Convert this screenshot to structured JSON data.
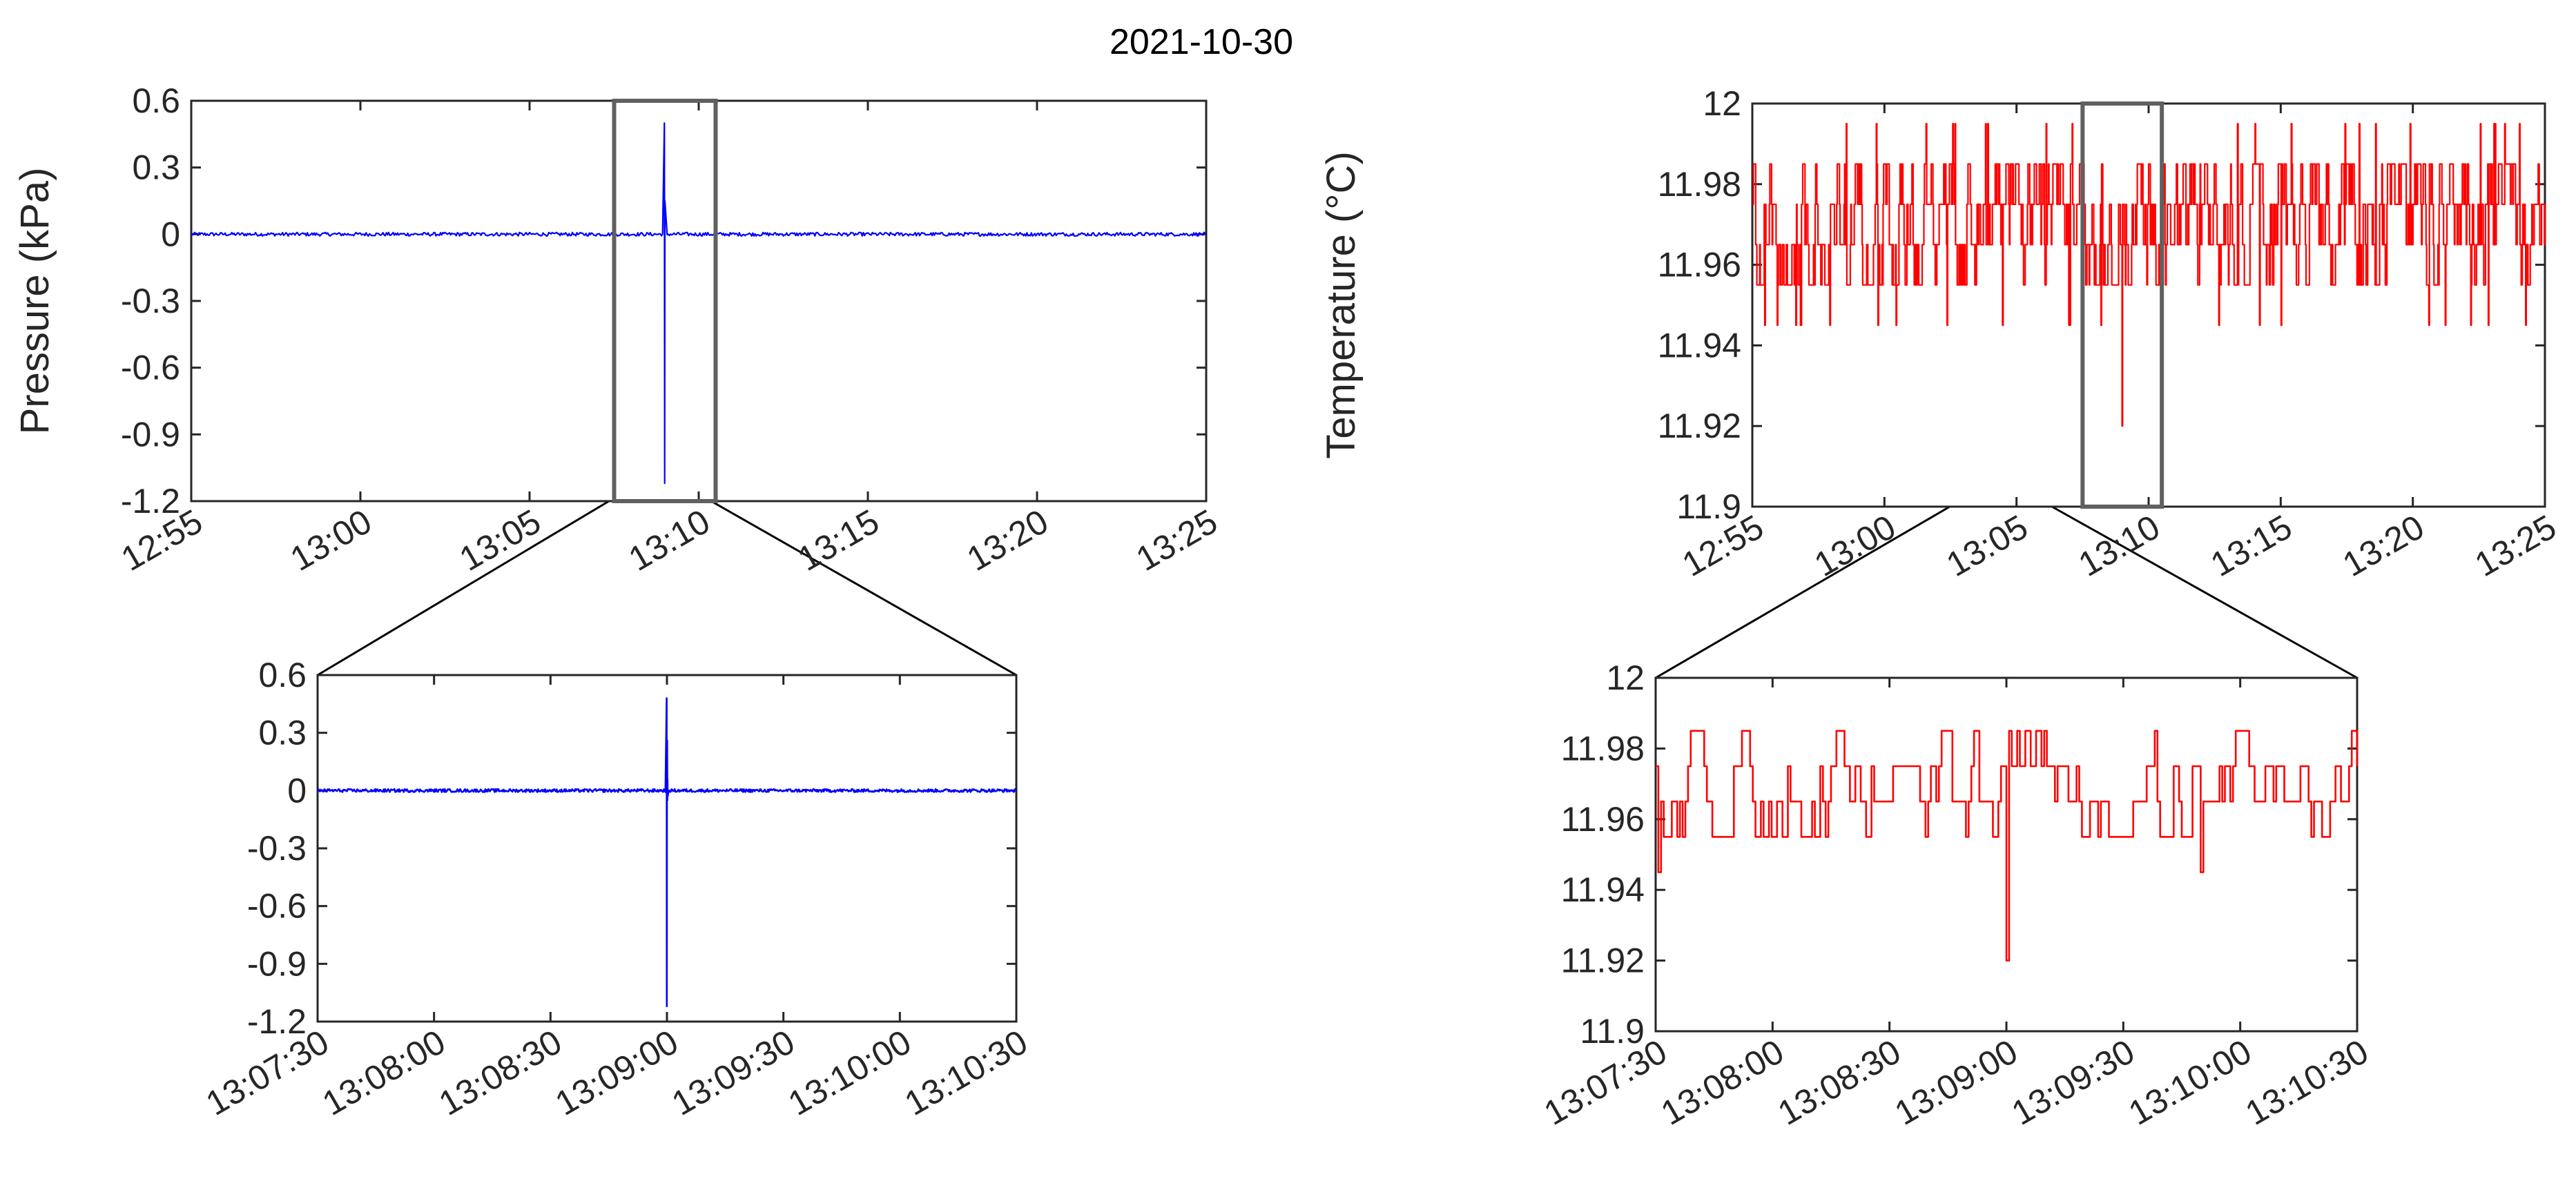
{
  "title": "2021-10-30",
  "colors": {
    "pressure": "#0000ff",
    "temperature": "#ff0000",
    "axis": "#262626",
    "zoom_box": "#606060"
  },
  "chart_data": [
    {
      "id": "pressure-overview",
      "type": "line",
      "ylabel": "Pressure (kPa)",
      "xlabel": "",
      "xlim": [
        "12:55",
        "13:25"
      ],
      "ylim": [
        -1.2,
        0.6
      ],
      "xticks": [
        "12:55",
        "13:00",
        "13:05",
        "13:10",
        "13:15",
        "13:20",
        "13:25"
      ],
      "yticks": [
        "0.6",
        "0.3",
        "0",
        "-0.3",
        "-0.6",
        "-0.9",
        "-1.2"
      ],
      "series": [
        {
          "baseline": 0,
          "noise": 0.008,
          "spike": {
            "time": "13:09:00",
            "max": 0.5,
            "min": -1.12
          }
        }
      ],
      "zoom_window": [
        "13:07:30",
        "13:10:30"
      ]
    },
    {
      "id": "temperature-overview",
      "type": "line",
      "ylabel": "Temperature (°C)",
      "xlabel": "",
      "xlim": [
        "12:55",
        "13:25"
      ],
      "ylim": [
        11.9,
        12
      ],
      "xticks": [
        "12:55",
        "13:00",
        "13:05",
        "13:10",
        "13:15",
        "13:20",
        "13:25"
      ],
      "yticks": [
        "12",
        "11.98",
        "11.96",
        "11.94",
        "11.92",
        "11.9"
      ],
      "series": [
        {
          "levels": [
            11.955,
            11.965,
            11.975,
            11.985
          ],
          "outliers_low": [
            11.945,
            11.92
          ],
          "outliers_high": [
            11.995
          ]
        }
      ],
      "zoom_window": [
        "13:07:30",
        "13:10:30"
      ]
    },
    {
      "id": "pressure-zoom",
      "type": "line",
      "ylabel": "",
      "xlabel": "",
      "xlim": [
        "13:07:30",
        "13:10:30"
      ],
      "ylim": [
        -1.2,
        0.6
      ],
      "xticks": [
        "13:07:30",
        "13:08:00",
        "13:08:30",
        "13:09:00",
        "13:09:30",
        "13:10:00",
        "13:10:30"
      ],
      "yticks": [
        "0.6",
        "0.3",
        "0",
        "-0.3",
        "-0.6",
        "-0.9",
        "-1.2"
      ],
      "series": [
        {
          "baseline": 0,
          "noise": 0.008,
          "spike": {
            "time": "13:09:00",
            "max": 0.48,
            "min": -1.12,
            "secondary_max": 0.26
          }
        }
      ]
    },
    {
      "id": "temperature-zoom",
      "type": "line",
      "ylabel": "",
      "xlabel": "",
      "xlim": [
        "13:07:30",
        "13:10:30"
      ],
      "ylim": [
        11.9,
        12
      ],
      "xticks": [
        "13:07:30",
        "13:08:00",
        "13:08:30",
        "13:09:00",
        "13:09:30",
        "13:10:00",
        "13:10:30"
      ],
      "yticks": [
        "12",
        "11.98",
        "11.96",
        "11.94",
        "11.92",
        "11.9"
      ],
      "series": [
        {
          "levels": [
            11.955,
            11.965,
            11.975,
            11.985
          ],
          "min": {
            "time": "13:09:00",
            "value": 11.92
          },
          "dips": [
            11.945
          ]
        }
      ]
    }
  ]
}
